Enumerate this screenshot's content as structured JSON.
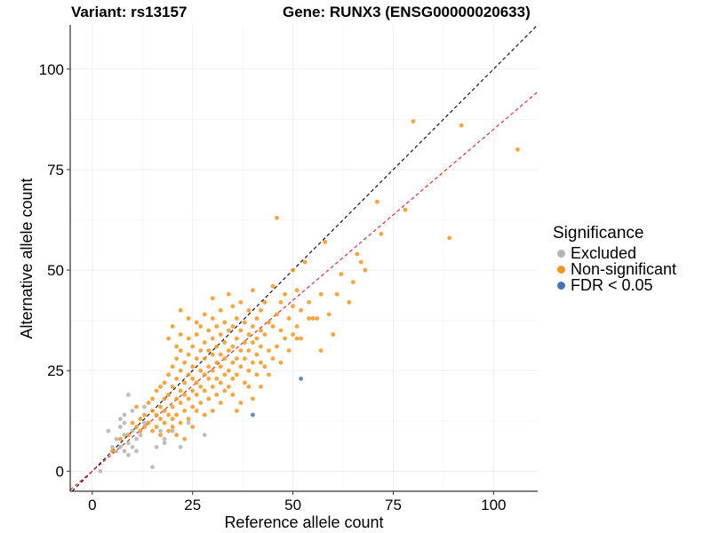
{
  "header": {
    "variant": "Variant: rs13157",
    "gene": "Gene: RUNX3 (ENSG00000020633)"
  },
  "colors": {
    "excluded": "#b3b3b3",
    "non_significant": "#f7941d",
    "significant": "#4575b4",
    "identity_line": "#000000",
    "fit_line": "#e41a1c"
  },
  "chart_data": {
    "type": "scatter",
    "title": "",
    "xlabel": "Reference allele count",
    "ylabel": "Alternative allele count",
    "xlim": [
      -5.5,
      111
    ],
    "ylim": [
      -5,
      111
    ],
    "x_ticks": [
      0,
      25,
      50,
      75,
      100
    ],
    "y_ticks": [
      0,
      25,
      50,
      75,
      100
    ],
    "grid": true,
    "legend": {
      "title": "Significance",
      "position": "right",
      "entries": [
        "Excluded",
        "Non-significant",
        "FDR < 0.05"
      ]
    },
    "reference_lines": [
      {
        "name": "identity",
        "style": "dashed",
        "color": "#000000",
        "intercept": 0,
        "slope": 1
      },
      {
        "name": "fit",
        "style": "dashed",
        "color": "#e41a1c",
        "intercept": 0,
        "slope": 0.85
      }
    ],
    "series": [
      {
        "name": "Excluded",
        "color": "#b3b3b3",
        "points": [
          [
            2,
            0
          ],
          [
            4,
            10
          ],
          [
            5,
            6
          ],
          [
            6,
            8
          ],
          [
            6,
            5
          ],
          [
            7,
            6
          ],
          [
            7,
            11
          ],
          [
            7,
            13
          ],
          [
            8,
            5
          ],
          [
            8,
            9
          ],
          [
            8,
            12
          ],
          [
            9,
            19
          ],
          [
            9,
            7
          ],
          [
            9,
            4
          ],
          [
            10,
            10
          ],
          [
            10,
            6
          ],
          [
            11,
            8
          ],
          [
            11,
            5
          ],
          [
            12,
            9
          ],
          [
            13,
            16
          ],
          [
            13,
            12
          ],
          [
            15,
            1
          ],
          [
            16,
            6
          ],
          [
            17,
            10
          ],
          [
            18,
            8
          ],
          [
            18,
            7
          ],
          [
            20,
            10
          ],
          [
            22,
            6
          ],
          [
            24,
            12
          ],
          [
            28,
            9
          ],
          [
            8,
            14
          ],
          [
            10,
            15
          ]
        ]
      },
      {
        "name": "Non-significant",
        "color": "#f7941d",
        "points": [
          [
            5,
            5
          ],
          [
            7,
            8
          ],
          [
            9,
            9
          ],
          [
            10,
            12
          ],
          [
            11,
            11
          ],
          [
            11,
            16
          ],
          [
            12,
            10
          ],
          [
            12,
            13
          ],
          [
            13,
            11
          ],
          [
            13,
            14
          ],
          [
            14,
            12
          ],
          [
            14,
            17
          ],
          [
            15,
            10
          ],
          [
            15,
            15
          ],
          [
            15,
            18
          ],
          [
            16,
            11
          ],
          [
            16,
            14
          ],
          [
            16,
            20
          ],
          [
            17,
            13
          ],
          [
            17,
            16
          ],
          [
            17,
            21
          ],
          [
            17,
            9
          ],
          [
            18,
            12
          ],
          [
            18,
            18
          ],
          [
            18,
            22
          ],
          [
            18,
            15
          ],
          [
            19,
            10
          ],
          [
            19,
            14
          ],
          [
            19,
            19
          ],
          [
            19,
            24
          ],
          [
            19,
            33
          ],
          [
            20,
            11
          ],
          [
            20,
            16
          ],
          [
            20,
            21
          ],
          [
            20,
            26
          ],
          [
            20,
            13
          ],
          [
            20,
            36
          ],
          [
            21,
            14
          ],
          [
            21,
            18
          ],
          [
            21,
            23
          ],
          [
            21,
            28
          ],
          [
            21,
            31
          ],
          [
            21,
            9
          ],
          [
            22,
            12
          ],
          [
            22,
            17
          ],
          [
            22,
            20
          ],
          [
            22,
            25
          ],
          [
            22,
            30
          ],
          [
            22,
            34
          ],
          [
            22,
            40
          ],
          [
            23,
            15
          ],
          [
            23,
            19
          ],
          [
            23,
            22
          ],
          [
            23,
            27
          ],
          [
            23,
            8
          ],
          [
            24,
            13
          ],
          [
            24,
            18
          ],
          [
            24,
            24
          ],
          [
            24,
            29
          ],
          [
            24,
            33
          ],
          [
            24,
            38
          ],
          [
            25,
            16
          ],
          [
            25,
            20
          ],
          [
            25,
            23
          ],
          [
            25,
            26
          ],
          [
            25,
            31
          ],
          [
            25,
            11
          ],
          [
            26,
            15
          ],
          [
            26,
            19
          ],
          [
            26,
            22
          ],
          [
            26,
            28
          ],
          [
            26,
            34
          ],
          [
            26,
            37
          ],
          [
            27,
            17
          ],
          [
            27,
            21
          ],
          [
            27,
            25
          ],
          [
            27,
            30
          ],
          [
            27,
            36
          ],
          [
            28,
            14
          ],
          [
            28,
            20
          ],
          [
            28,
            24
          ],
          [
            28,
            28
          ],
          [
            28,
            32
          ],
          [
            28,
            39
          ],
          [
            29,
            18
          ],
          [
            29,
            23
          ],
          [
            29,
            26
          ],
          [
            29,
            30
          ],
          [
            29,
            35
          ],
          [
            30,
            15
          ],
          [
            30,
            21
          ],
          [
            30,
            25
          ],
          [
            30,
            29
          ],
          [
            30,
            33
          ],
          [
            30,
            38
          ],
          [
            30,
            43
          ],
          [
            31,
            19
          ],
          [
            31,
            23
          ],
          [
            31,
            27
          ],
          [
            31,
            31
          ],
          [
            31,
            36
          ],
          [
            32,
            17
          ],
          [
            32,
            22
          ],
          [
            32,
            26
          ],
          [
            32,
            29
          ],
          [
            32,
            34
          ],
          [
            32,
            40
          ],
          [
            33,
            20
          ],
          [
            33,
            24
          ],
          [
            33,
            28
          ],
          [
            33,
            32
          ],
          [
            33,
            37
          ],
          [
            34,
            21
          ],
          [
            34,
            25
          ],
          [
            34,
            30
          ],
          [
            34,
            35
          ],
          [
            34,
            44
          ],
          [
            35,
            19
          ],
          [
            35,
            23
          ],
          [
            35,
            27
          ],
          [
            35,
            31
          ],
          [
            35,
            36
          ],
          [
            35,
            41
          ],
          [
            36,
            24
          ],
          [
            36,
            28
          ],
          [
            36,
            33
          ],
          [
            36,
            38
          ],
          [
            36,
            15
          ],
          [
            37,
            26
          ],
          [
            37,
            30
          ],
          [
            37,
            35
          ],
          [
            37,
            42
          ],
          [
            38,
            22
          ],
          [
            38,
            28
          ],
          [
            38,
            32
          ],
          [
            38,
            37
          ],
          [
            39,
            25
          ],
          [
            39,
            30
          ],
          [
            39,
            34
          ],
          [
            39,
            40
          ],
          [
            40,
            18
          ],
          [
            40,
            27
          ],
          [
            40,
            32
          ],
          [
            40,
            36
          ],
          [
            40,
            45
          ],
          [
            41,
            24
          ],
          [
            41,
            29
          ],
          [
            41,
            33
          ],
          [
            41,
            38
          ],
          [
            42,
            21
          ],
          [
            42,
            27
          ],
          [
            42,
            31
          ],
          [
            42,
            35
          ],
          [
            42,
            40
          ],
          [
            43,
            26
          ],
          [
            43,
            34
          ],
          [
            43,
            42
          ],
          [
            44,
            24
          ],
          [
            44,
            30
          ],
          [
            44,
            37
          ],
          [
            45,
            28
          ],
          [
            45,
            36
          ],
          [
            45,
            46
          ],
          [
            46,
            31
          ],
          [
            46,
            39
          ],
          [
            46,
            63
          ],
          [
            47,
            27
          ],
          [
            47,
            35
          ],
          [
            47,
            42
          ],
          [
            48,
            33
          ],
          [
            48,
            44
          ],
          [
            49,
            30
          ],
          [
            49,
            38
          ],
          [
            50,
            34
          ],
          [
            50,
            41
          ],
          [
            50,
            50
          ],
          [
            51,
            36
          ],
          [
            51,
            45
          ],
          [
            52,
            40
          ],
          [
            52,
            33
          ],
          [
            53,
            52
          ],
          [
            54,
            42
          ],
          [
            54,
            38
          ],
          [
            55,
            38
          ],
          [
            56,
            38
          ],
          [
            57,
            30
          ],
          [
            57,
            44
          ],
          [
            58,
            57
          ],
          [
            59,
            39
          ],
          [
            60,
            34
          ],
          [
            61,
            44
          ],
          [
            62,
            49
          ],
          [
            64,
            42
          ],
          [
            65,
            47
          ],
          [
            66,
            54
          ],
          [
            67,
            52
          ],
          [
            68,
            50
          ],
          [
            71,
            67
          ],
          [
            72,
            59
          ],
          [
            78,
            65
          ],
          [
            80,
            87
          ],
          [
            89,
            58
          ],
          [
            92,
            86
          ],
          [
            106,
            80
          ],
          [
            51,
            33
          ],
          [
            39,
            21
          ],
          [
            37,
            17
          ]
        ]
      },
      {
        "name": "FDR < 0.05",
        "color": "#4575b4",
        "points": [
          [
            40,
            14
          ],
          [
            52,
            23
          ]
        ]
      }
    ]
  }
}
